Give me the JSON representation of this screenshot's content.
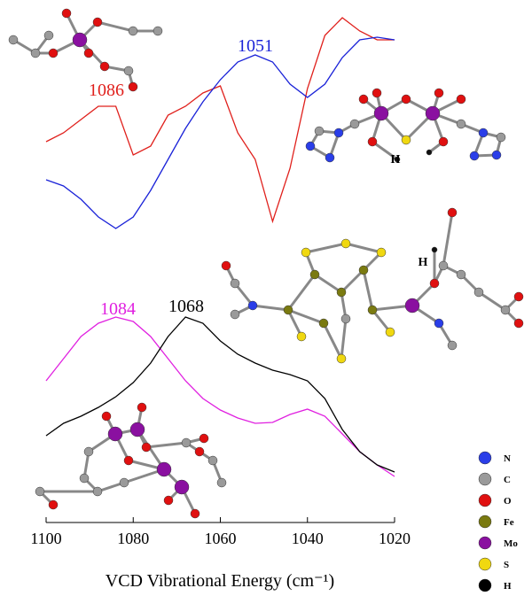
{
  "chart_data": {
    "type": "line",
    "xlabel": "VCD Vibrational Energy (cm⁻¹)",
    "x": [
      1100,
      1096,
      1092,
      1088,
      1084,
      1080,
      1076,
      1072,
      1068,
      1064,
      1060,
      1056,
      1052,
      1048,
      1044,
      1040,
      1036,
      1032,
      1028,
      1024,
      1020
    ],
    "xlim": [
      1100,
      1020
    ],
    "xticks": [
      1100,
      1080,
      1060,
      1040,
      1020
    ],
    "ylim": [
      0,
      600
    ],
    "series": [
      {
        "color": "#e0201c",
        "values": [
          440,
          450,
          465,
          480,
          480,
          425,
          435,
          470,
          480,
          495,
          503,
          450,
          420,
          350,
          410,
          500,
          560,
          580,
          565,
          555,
          555
        ]
      },
      {
        "color": "#1a22d8",
        "values": [
          397,
          390,
          375,
          355,
          342,
          355,
          385,
          420,
          455,
          485,
          510,
          530,
          538,
          530,
          505,
          490,
          505,
          535,
          555,
          558,
          555
        ]
      },
      {
        "color": "#e020e0",
        "values": [
          170,
          195,
          220,
          235,
          242,
          237,
          220,
          195,
          170,
          150,
          137,
          128,
          122,
          123,
          132,
          138,
          130,
          110,
          90,
          75,
          62
        ]
      },
      {
        "color": "#000000",
        "values": [
          108,
          122,
          130,
          140,
          152,
          168,
          190,
          220,
          242,
          235,
          215,
          200,
          190,
          182,
          177,
          170,
          150,
          115,
          90,
          75,
          67
        ]
      }
    ],
    "annotations": [
      {
        "text": "1086",
        "color": "#e0201c"
      },
      {
        "text": "1051",
        "color": "#1a22d8"
      },
      {
        "text": "1084",
        "color": "#e020e0"
      },
      {
        "text": "1068",
        "color": "#000000"
      }
    ],
    "molecule_labels": [
      "H",
      "H"
    ],
    "atom_legend": [
      {
        "label": "N",
        "color": "#2a3ee8"
      },
      {
        "label": "C",
        "color": "#9a9a9a"
      },
      {
        "label": "O",
        "color": "#e01010"
      },
      {
        "label": "Fe",
        "color": "#7a7a10"
      },
      {
        "label": "Mo",
        "color": "#8a10a0"
      },
      {
        "label": "S",
        "color": "#f0d810"
      },
      {
        "label": "H",
        "color": "#000000"
      }
    ]
  }
}
